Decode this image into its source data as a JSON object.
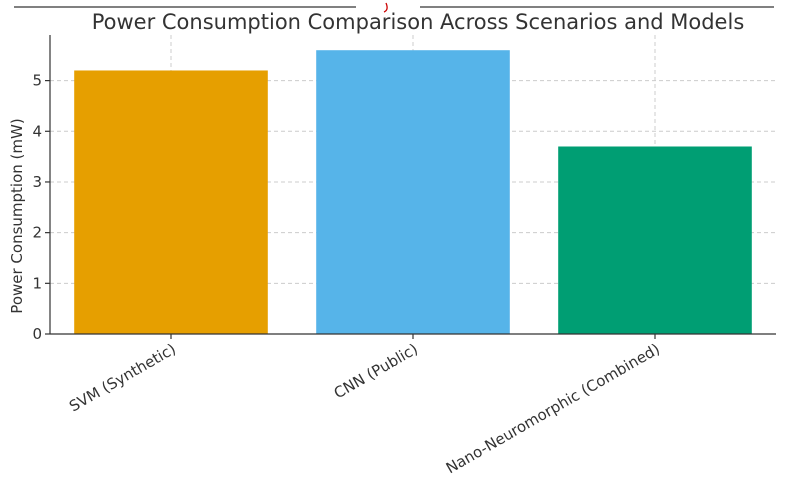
{
  "chart_data": {
    "type": "bar",
    "title": "Power Consumption Comparison Across Scenarios and Models",
    "xlabel": "",
    "ylabel": "Power Consumption (mW)",
    "categories": [
      "SVM (Synthetic)",
      "CNN (Public)",
      "Nano-Neuromorphic (Combined)"
    ],
    "values": [
      5.2,
      5.6,
      3.7
    ],
    "colors": [
      "#E69F00",
      "#56B4E9",
      "#009E73"
    ],
    "ylim": [
      0,
      5.9
    ],
    "yticks": [
      "0",
      "1",
      "2",
      "3",
      "4",
      "5"
    ],
    "grid": true
  }
}
